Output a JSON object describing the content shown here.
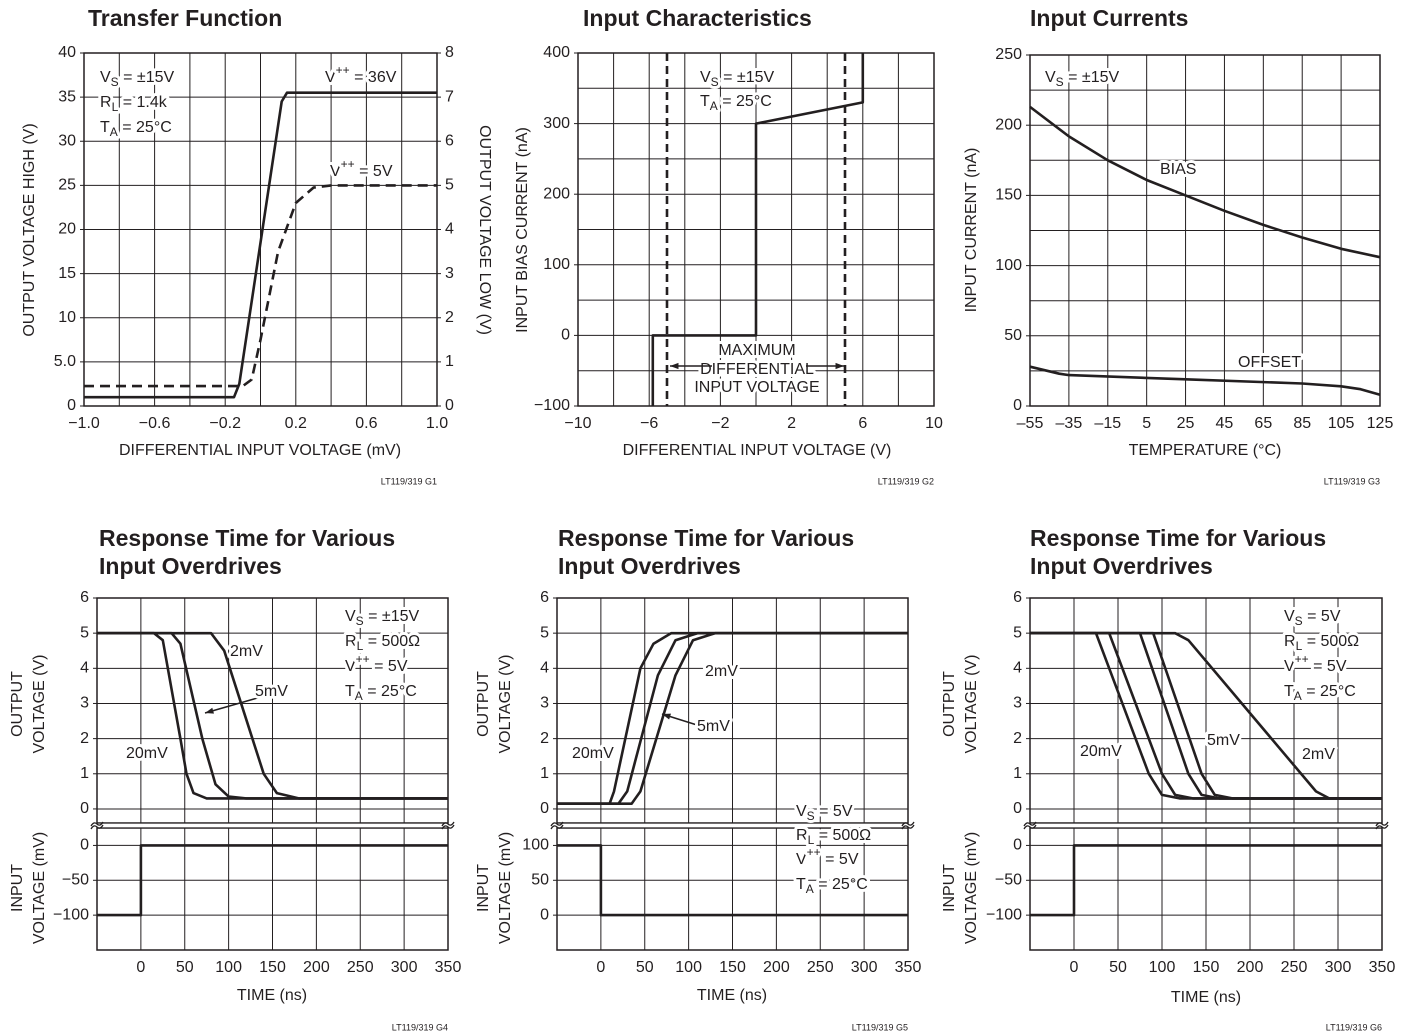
{
  "chart_data": [
    {
      "type": "line",
      "title": "Transfer Function",
      "xlabel": "DIFFERENTIAL INPUT VOLTAGE (mV)",
      "ylabel": "OUTPUT VOLTAGE HIGH (V)",
      "y2label": "OUTPUT VOLTAGE LOW (V)",
      "note": "LT119/319 G1",
      "xlim": [
        -1,
        1
      ],
      "xticks": [
        {
          "value": -1,
          "label": "−1.0"
        },
        {
          "value": -0.6,
          "label": "−0.6"
        },
        {
          "value": -0.2,
          "label": "−0.2"
        },
        0.2,
        0.6,
        {
          "value": 1,
          "label": "1.0"
        }
      ],
      "xgrid": [
        -0.8,
        -0.6,
        -0.4,
        -0.2,
        0,
        0.2,
        0.4,
        0.6,
        0.8
      ],
      "ylim": [
        0,
        40
      ],
      "yticks": [
        0,
        {
          "value": 5,
          "label": "5.0"
        },
        10,
        15,
        20,
        25,
        30,
        35,
        40
      ],
      "ygrid": [
        5,
        10,
        15,
        20,
        25,
        30,
        35
      ],
      "y2lim": [
        0,
        8
      ],
      "y2ticks": [
        0,
        1,
        2,
        3,
        4,
        5,
        6,
        7,
        8
      ],
      "annotations": [
        {
          "base": "V",
          "sub": "S",
          "text": " = ±15V"
        },
        {
          "base": "R",
          "sub": "L",
          "text": " = 1.4k"
        },
        {
          "base": "T",
          "sub": "A",
          "text": " = 25°C"
        }
      ],
      "series": [
        {
          "label": {
            "base": "V",
            "sup": "++",
            "text": " = 36V"
          },
          "color": "#231f20",
          "dash": false,
          "x": [
            -1,
            -0.15,
            -0.12,
            0.12,
            0.15,
            1
          ],
          "values": [
            1,
            1,
            2.5,
            34.5,
            35.5,
            35.5
          ]
        },
        {
          "label": {
            "base": "V",
            "sup": "++",
            "text": " = 5V"
          },
          "color": "#231f20",
          "dash": true,
          "axis": "y2",
          "x": [
            -1,
            -0.1,
            -0.05,
            0,
            0.1,
            0.2,
            0.3,
            0.4,
            1
          ],
          "values": [
            0.45,
            0.45,
            0.6,
            1.5,
            3.5,
            4.6,
            4.95,
            5,
            5
          ]
        }
      ]
    },
    {
      "type": "line",
      "title": "Input Characteristics",
      "xlabel": "DIFFERENTIAL INPUT VOLTAGE (V)",
      "ylabel": "INPUT BIAS CURRENT (nA)",
      "note": "LT119/319 G2",
      "xlim": [
        -10,
        10
      ],
      "xticks": [
        {
          "value": -10,
          "label": "−10"
        },
        {
          "value": -6,
          "label": "−6"
        },
        {
          "value": -2,
          "label": "−2"
        },
        2,
        6,
        10
      ],
      "xgrid": [
        -8,
        -6,
        -4,
        -2,
        0,
        2,
        4,
        6,
        8
      ],
      "ylim": [
        -100,
        400
      ],
      "yticks": [
        {
          "value": -100,
          "label": "−100"
        },
        0,
        100,
        200,
        300,
        400
      ],
      "ygrid": [
        -50,
        0,
        50,
        100,
        150,
        200,
        250,
        300,
        350
      ],
      "vlines": [
        -5,
        5
      ],
      "annotations": [
        {
          "base": "V",
          "sub": "S",
          "text": " = ±15V"
        },
        {
          "base": "T",
          "sub": "A",
          "text": " = 25°C"
        },
        {
          "text": "MAXIMUM"
        },
        {
          "text": "DIFFERENTIAL"
        },
        {
          "text": "INPUT VOLTAGE"
        }
      ],
      "series": [
        {
          "color": "#231f20",
          "dash": false,
          "x": [
            -5.8,
            -5.8,
            0,
            0,
            6,
            6
          ],
          "values": [
            -100,
            0,
            0,
            300,
            330,
            400
          ]
        }
      ]
    },
    {
      "type": "line",
      "title": "Input Currents",
      "xlabel": "TEMPERATURE (°C)",
      "ylabel": "INPUT CURRENT (nA)",
      "note": "LT119/319 G3",
      "xlim": [
        -55,
        125
      ],
      "xticks": [
        {
          "value": -55,
          "label": "–55"
        },
        {
          "value": -35,
          "label": "–35"
        },
        {
          "value": -15,
          "label": "–15"
        },
        5,
        25,
        45,
        65,
        85,
        105,
        125
      ],
      "xgrid": [
        -35,
        -15,
        5,
        25,
        45,
        65,
        85,
        105
      ],
      "ylim": [
        0,
        250
      ],
      "yticks": [
        0,
        50,
        100,
        150,
        200,
        250
      ],
      "ygrid": [
        25,
        50,
        75,
        100,
        125,
        150,
        175,
        200,
        225
      ],
      "annotations": [
        {
          "base": "V",
          "sub": "S",
          "text": " = ±15V"
        }
      ],
      "series": [
        {
          "name": "BIAS",
          "color": "#231f20",
          "dash": false,
          "x": [
            -55,
            -35,
            -15,
            5,
            25,
            45,
            65,
            85,
            105,
            125
          ],
          "values": [
            213,
            192,
            175,
            161,
            150,
            139,
            129,
            120,
            112,
            106
          ]
        },
        {
          "name": "OFFSET",
          "color": "#231f20",
          "dash": false,
          "x": [
            -55,
            -40,
            -35,
            25,
            85,
            105,
            115,
            125
          ],
          "values": [
            28,
            23,
            22,
            19,
            16,
            14,
            12,
            8
          ]
        }
      ]
    },
    {
      "type": "line",
      "stacked": true,
      "title": [
        "Response Time for Various",
        "Input Overdrives"
      ],
      "xlabel": "TIME (ns)",
      "ylabel": [
        "OUTPUT",
        "VOLTAGE (V)"
      ],
      "y2label": [
        "INPUT",
        "VOLTAGE (mV)"
      ],
      "note": "LT119/319 G4",
      "xlim": [
        -50,
        350
      ],
      "xticks": [
        0,
        50,
        100,
        150,
        200,
        250,
        300,
        350
      ],
      "xgrid": [
        0,
        50,
        100,
        150,
        200,
        250,
        300
      ],
      "ylim": [
        -0.4,
        6
      ],
      "yticks": [
        0,
        1,
        2,
        3,
        4,
        5,
        6
      ],
      "ygrid": [
        0,
        1,
        2,
        3,
        4,
        5
      ],
      "y2lim": [
        -150,
        25
      ],
      "y2ticks": [
        0,
        {
          "value": -50,
          "label": "−50"
        },
        {
          "value": -100,
          "label": "−100"
        }
      ],
      "y2grid": [
        0,
        -50,
        -100
      ],
      "annotations": [
        {
          "base": "V",
          "sub": "S",
          "text": " = ±15V"
        },
        {
          "base": "R",
          "sub": "L",
          "text": " = 500Ω"
        },
        {
          "base": "V",
          "sup": "++",
          "text": " = 5V"
        },
        {
          "base": "T",
          "sub": "A",
          "text": " = 25°C"
        }
      ],
      "series": [
        {
          "name": "2mV",
          "color": "#231f20",
          "dash": false,
          "x": [
            -50,
            80,
            95,
            140,
            155,
            180,
            350
          ],
          "values": [
            5,
            5,
            4.5,
            1,
            0.45,
            0.3,
            0.3
          ]
        },
        {
          "name": "5mV",
          "color": "#231f20",
          "dash": false,
          "x": [
            -50,
            35,
            45,
            70,
            85,
            100,
            120,
            350
          ],
          "values": [
            5,
            5,
            4.7,
            2,
            0.7,
            0.35,
            0.3,
            0.3
          ]
        },
        {
          "name": "20mV",
          "color": "#231f20",
          "dash": false,
          "x": [
            -50,
            15,
            25,
            45,
            52,
            60,
            75,
            350
          ],
          "values": [
            5,
            5,
            4.8,
            2,
            1,
            0.45,
            0.3,
            0.3
          ]
        },
        {
          "color": "#231f20",
          "dash": false,
          "axis": "y2",
          "x": [
            -50,
            0,
            0,
            350
          ],
          "values": [
            -100,
            -100,
            0,
            0
          ]
        }
      ]
    },
    {
      "type": "line",
      "stacked": true,
      "title": [
        "Response Time for Various",
        "Input Overdrives"
      ],
      "xlabel": "TIME (ns)",
      "ylabel": [
        "OUTPUT",
        "VOLTAGE (V)"
      ],
      "y2label": [
        "INPUT",
        "VOLTAGE (mV)"
      ],
      "note": "LT119/319 G5",
      "xlim": [
        -50,
        350
      ],
      "xticks": [
        0,
        50,
        100,
        150,
        200,
        250,
        300,
        350
      ],
      "xgrid": [
        0,
        50,
        100,
        150,
        200,
        250,
        300
      ],
      "ylim": [
        -0.4,
        6
      ],
      "yticks": [
        0,
        1,
        2,
        3,
        4,
        5,
        6
      ],
      "ygrid": [
        0,
        1,
        2,
        3,
        4,
        5
      ],
      "y2lim": [
        -50,
        125
      ],
      "y2ticks": [
        100,
        50,
        0
      ],
      "y2grid": [
        100,
        50,
        0
      ],
      "annotations": [
        {
          "base": "V",
          "sub": "S",
          "text": " = 5V"
        },
        {
          "base": "R",
          "sub": "L",
          "text": " = 500Ω"
        },
        {
          "base": "V",
          "sup": "++",
          "text": " = 5V"
        },
        {
          "base": "T",
          "sub": "A",
          "text": " = 25°C"
        }
      ],
      "series": [
        {
          "name": "20mV",
          "color": "#231f20",
          "dash": false,
          "x": [
            -50,
            10,
            15,
            45,
            60,
            80,
            350
          ],
          "values": [
            0.15,
            0.15,
            0.5,
            4,
            4.7,
            5,
            5
          ]
        },
        {
          "name": "5mV",
          "color": "#231f20",
          "dash": false,
          "x": [
            -50,
            20,
            30,
            65,
            85,
            110,
            350
          ],
          "values": [
            0.15,
            0.15,
            0.5,
            3.8,
            4.8,
            5,
            5
          ]
        },
        {
          "name": "2mV",
          "color": "#231f20",
          "dash": false,
          "x": [
            -50,
            35,
            45,
            85,
            105,
            130,
            350
          ],
          "values": [
            0.15,
            0.15,
            0.5,
            3.8,
            4.8,
            5,
            5
          ]
        },
        {
          "color": "#231f20",
          "dash": false,
          "axis": "y2",
          "x": [
            -50,
            0,
            0,
            350
          ],
          "values": [
            100,
            100,
            0,
            0
          ]
        }
      ]
    },
    {
      "type": "line",
      "stacked": true,
      "title": [
        "Response Time for Various",
        "Input Overdrives"
      ],
      "xlabel": "TIME (ns)",
      "ylabel": [
        "OUTPUT",
        "VOLTAGE (V)"
      ],
      "y2label": [
        "INPUT",
        "VOLTAGE (mV)"
      ],
      "note": "LT119/319 G6",
      "xlim": [
        -50,
        350
      ],
      "xticks": [
        0,
        50,
        100,
        150,
        200,
        250,
        300,
        350
      ],
      "xgrid": [
        0,
        50,
        100,
        150,
        200,
        250,
        300
      ],
      "ylim": [
        -0.4,
        6
      ],
      "yticks": [
        0,
        1,
        2,
        3,
        4,
        5,
        6
      ],
      "ygrid": [
        0,
        1,
        2,
        3,
        4,
        5
      ],
      "y2lim": [
        -150,
        25
      ],
      "y2ticks": [
        0,
        {
          "value": -50,
          "label": "−50"
        },
        {
          "value": -100,
          "label": "−100"
        }
      ],
      "y2grid": [
        0,
        -50,
        -100
      ],
      "annotations": [
        {
          "base": "V",
          "sub": "S",
          "text": " = 5V"
        },
        {
          "base": "R",
          "sub": "L",
          "text": " = 500Ω"
        },
        {
          "base": "V",
          "sup": "++",
          "text": " = 5V"
        },
        {
          "base": "T",
          "sub": "A",
          "text": " = 25°C"
        }
      ],
      "series": [
        {
          "name": "20mV",
          "color": "#231f20",
          "dash": false,
          "x": [
            -50,
            25,
            85,
            100,
            120,
            350
          ],
          "values": [
            5,
            5,
            1,
            0.4,
            0.3,
            0.3
          ]
        },
        {
          "color": "#231f20",
          "dash": false,
          "x": [
            -50,
            40,
            100,
            115,
            135,
            350
          ],
          "values": [
            5,
            5,
            1,
            0.4,
            0.3,
            0.3
          ]
        },
        {
          "color": "#231f20",
          "dash": false,
          "x": [
            -50,
            75,
            130,
            145,
            165,
            350
          ],
          "values": [
            5,
            5,
            1,
            0.4,
            0.3,
            0.3
          ]
        },
        {
          "name": "5mV",
          "color": "#231f20",
          "dash": false,
          "x": [
            -50,
            90,
            145,
            160,
            180,
            350
          ],
          "values": [
            5,
            5,
            1,
            0.4,
            0.3,
            0.3
          ]
        },
        {
          "name": "2mV",
          "color": "#231f20",
          "dash": false,
          "x": [
            -50,
            115,
            130,
            275,
            290,
            350
          ],
          "values": [
            5,
            5,
            4.8,
            0.5,
            0.3,
            0.3
          ]
        },
        {
          "color": "#231f20",
          "dash": false,
          "axis": "y2",
          "x": [
            -50,
            0,
            0,
            350
          ],
          "values": [
            -100,
            -100,
            0,
            0
          ]
        }
      ]
    }
  ]
}
